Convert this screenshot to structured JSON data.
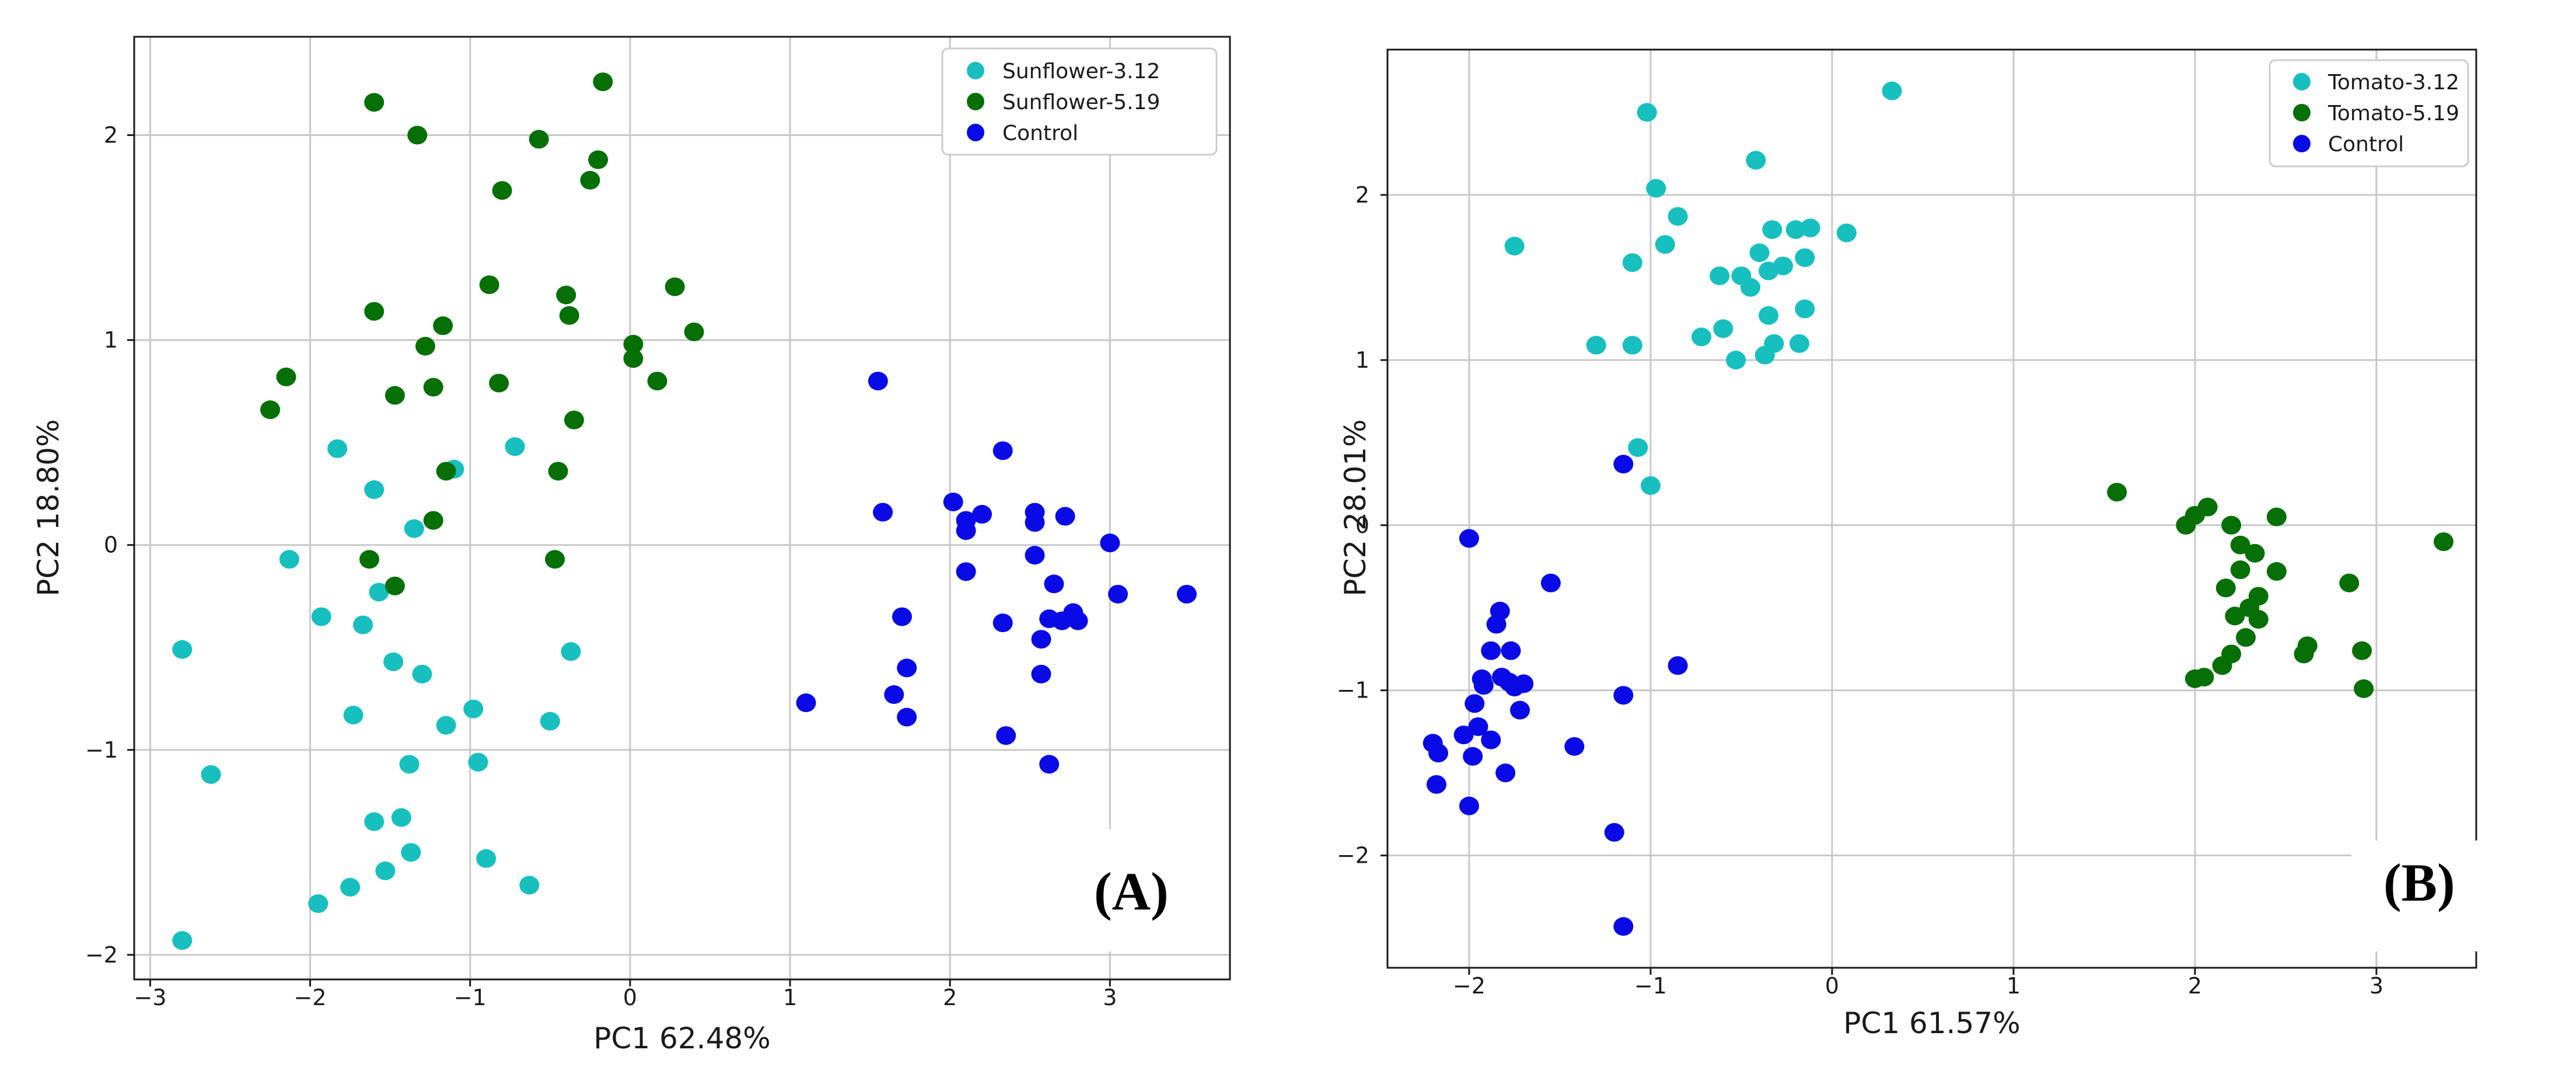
{
  "colors": {
    "cyan": "#17bfbf",
    "green": "#067006",
    "blue": "#0a0ae6"
  },
  "chart_data": [
    {
      "type": "scatter",
      "panel_label": "(A)",
      "xlabel": "PC1 62.48%",
      "ylabel": "PC2 18.80%",
      "xlim": [
        -3.1,
        3.75
      ],
      "ylim": [
        -2.12,
        2.48
      ],
      "xticks": [
        -3,
        -2,
        -1,
        0,
        1,
        2,
        3
      ],
      "yticks": [
        -2,
        -1,
        0,
        1,
        2
      ],
      "grid": true,
      "legend_position": "top-right",
      "series": [
        {
          "name": "Sunflower-3.12",
          "color": "#17bfbf",
          "points": [
            [
              -2.8,
              -0.51
            ],
            [
              -2.62,
              -1.12
            ],
            [
              -2.8,
              -1.93
            ],
            [
              -2.13,
              -0.07
            ],
            [
              -1.83,
              0.47
            ],
            [
              -1.93,
              -0.35
            ],
            [
              -1.95,
              -1.75
            ],
            [
              -1.73,
              -0.83
            ],
            [
              -1.75,
              -1.67
            ],
            [
              -1.67,
              -0.39
            ],
            [
              -1.6,
              0.27
            ],
            [
              -1.57,
              -0.23
            ],
            [
              -1.6,
              -1.35
            ],
            [
              -1.53,
              -1.59
            ],
            [
              -1.48,
              -0.57
            ],
            [
              -1.43,
              -1.33
            ],
            [
              -1.38,
              -1.07
            ],
            [
              -1.37,
              -1.5
            ],
            [
              -1.35,
              0.08
            ],
            [
              -1.3,
              -0.63
            ],
            [
              -1.15,
              -0.88
            ],
            [
              -1.1,
              0.37
            ],
            [
              -0.98,
              -0.8
            ],
            [
              -0.95,
              -1.06
            ],
            [
              -0.9,
              -1.53
            ],
            [
              -0.72,
              0.48
            ],
            [
              -0.63,
              -1.66
            ],
            [
              -0.5,
              -0.86
            ],
            [
              -0.37,
              -0.52
            ]
          ]
        },
        {
          "name": "Sunflower-5.19",
          "color": "#067006",
          "points": [
            [
              -2.25,
              0.66
            ],
            [
              -2.15,
              0.82
            ],
            [
              -1.63,
              -0.07
            ],
            [
              -1.6,
              2.16
            ],
            [
              -1.6,
              1.14
            ],
            [
              -1.47,
              0.73
            ],
            [
              -1.47,
              -0.2
            ],
            [
              -1.33,
              2.0
            ],
            [
              -1.28,
              0.97
            ],
            [
              -1.23,
              0.77
            ],
            [
              -1.23,
              0.12
            ],
            [
              -1.17,
              1.07
            ],
            [
              -1.15,
              0.36
            ],
            [
              -0.88,
              1.27
            ],
            [
              -0.82,
              0.79
            ],
            [
              -0.8,
              1.73
            ],
            [
              -0.57,
              1.98
            ],
            [
              -0.47,
              -0.07
            ],
            [
              -0.45,
              0.36
            ],
            [
              -0.4,
              1.22
            ],
            [
              -0.38,
              1.12
            ],
            [
              -0.35,
              0.61
            ],
            [
              -0.25,
              1.78
            ],
            [
              -0.2,
              1.88
            ],
            [
              -0.17,
              2.26
            ],
            [
              0.02,
              0.98
            ],
            [
              0.02,
              0.91
            ],
            [
              0.17,
              0.8
            ],
            [
              0.28,
              1.26
            ],
            [
              0.4,
              1.04
            ]
          ]
        },
        {
          "name": "Control",
          "color": "#0a0ae6",
          "points": [
            [
              1.1,
              -0.77
            ],
            [
              1.55,
              0.8
            ],
            [
              1.58,
              0.16
            ],
            [
              1.65,
              -0.73
            ],
            [
              1.7,
              -0.35
            ],
            [
              1.73,
              -0.6
            ],
            [
              1.73,
              -0.84
            ],
            [
              2.02,
              0.21
            ],
            [
              2.1,
              0.07
            ],
            [
              2.1,
              0.12
            ],
            [
              2.1,
              -0.13
            ],
            [
              2.2,
              0.15
            ],
            [
              2.33,
              0.46
            ],
            [
              2.33,
              -0.38
            ],
            [
              2.35,
              -0.93
            ],
            [
              2.53,
              0.16
            ],
            [
              2.53,
              0.11
            ],
            [
              2.53,
              -0.05
            ],
            [
              2.57,
              -0.46
            ],
            [
              2.57,
              -0.63
            ],
            [
              2.62,
              -1.07
            ],
            [
              2.62,
              -0.36
            ],
            [
              2.65,
              -0.19
            ],
            [
              2.7,
              -0.37
            ],
            [
              2.72,
              0.14
            ],
            [
              2.77,
              -0.33
            ],
            [
              2.8,
              -0.37
            ],
            [
              3.0,
              0.01
            ],
            [
              3.05,
              -0.24
            ],
            [
              3.48,
              -0.24
            ]
          ]
        }
      ]
    },
    {
      "type": "scatter",
      "panel_label": "(B)",
      "xlabel": "PC1 61.57%",
      "ylabel": "PC2 28.01%",
      "xlim": [
        -2.45,
        3.55
      ],
      "ylim": [
        -2.68,
        2.88
      ],
      "xticks": [
        -2,
        -1,
        0,
        1,
        2,
        3
      ],
      "yticks": [
        -2,
        -1,
        0,
        1,
        2
      ],
      "grid": true,
      "legend_position": "top-right",
      "series": [
        {
          "name": "Tomato-3.12",
          "color": "#17bfbf",
          "points": [
            [
              -1.75,
              1.69
            ],
            [
              -1.3,
              1.09
            ],
            [
              -1.1,
              1.59
            ],
            [
              -1.1,
              1.09
            ],
            [
              -1.07,
              0.47
            ],
            [
              -1.02,
              2.5
            ],
            [
              -1.0,
              0.24
            ],
            [
              -0.97,
              2.04
            ],
            [
              -0.92,
              1.7
            ],
            [
              -0.85,
              1.87
            ],
            [
              -0.72,
              1.14
            ],
            [
              -0.62,
              1.51
            ],
            [
              -0.6,
              1.19
            ],
            [
              -0.53,
              1.0
            ],
            [
              -0.5,
              1.51
            ],
            [
              -0.45,
              1.44
            ],
            [
              -0.42,
              2.21
            ],
            [
              -0.4,
              1.65
            ],
            [
              -0.37,
              1.03
            ],
            [
              -0.35,
              1.54
            ],
            [
              -0.35,
              1.27
            ],
            [
              -0.33,
              1.79
            ],
            [
              -0.32,
              1.1
            ],
            [
              -0.27,
              1.57
            ],
            [
              -0.2,
              1.79
            ],
            [
              -0.18,
              1.1
            ],
            [
              -0.15,
              1.62
            ],
            [
              -0.15,
              1.31
            ],
            [
              -0.12,
              1.8
            ],
            [
              0.08,
              1.77
            ],
            [
              0.33,
              2.63
            ]
          ]
        },
        {
          "name": "Tomato-5.19",
          "color": "#067006",
          "points": [
            [
              1.57,
              0.2
            ],
            [
              1.95,
              0.0
            ],
            [
              2.0,
              0.06
            ],
            [
              2.0,
              -0.93
            ],
            [
              2.05,
              -0.92
            ],
            [
              2.07,
              0.11
            ],
            [
              2.15,
              -0.85
            ],
            [
              2.17,
              -0.38
            ],
            [
              2.2,
              -0.78
            ],
            [
              2.2,
              0.0
            ],
            [
              2.22,
              -0.55
            ],
            [
              2.25,
              -0.27
            ],
            [
              2.25,
              -0.12
            ],
            [
              2.28,
              -0.68
            ],
            [
              2.3,
              -0.5
            ],
            [
              2.33,
              -0.17
            ],
            [
              2.35,
              -0.43
            ],
            [
              2.35,
              -0.57
            ],
            [
              2.45,
              0.05
            ],
            [
              2.45,
              -0.28
            ],
            [
              2.6,
              -0.78
            ],
            [
              2.62,
              -0.73
            ],
            [
              2.85,
              -0.35
            ],
            [
              2.92,
              -0.76
            ],
            [
              2.93,
              -0.99
            ],
            [
              3.37,
              -0.1
            ]
          ]
        },
        {
          "name": "Control",
          "color": "#0a0ae6",
          "points": [
            [
              -2.2,
              -1.32
            ],
            [
              -2.18,
              -1.57
            ],
            [
              -2.17,
              -1.38
            ],
            [
              -2.03,
              -1.27
            ],
            [
              -2.0,
              -0.08
            ],
            [
              -2.0,
              -1.7
            ],
            [
              -1.98,
              -1.4
            ],
            [
              -1.97,
              -1.08
            ],
            [
              -1.95,
              -1.22
            ],
            [
              -1.93,
              -0.93
            ],
            [
              -1.92,
              -0.97
            ],
            [
              -1.88,
              -0.76
            ],
            [
              -1.88,
              -1.3
            ],
            [
              -1.85,
              -0.6
            ],
            [
              -1.83,
              -0.52
            ],
            [
              -1.82,
              -0.92
            ],
            [
              -1.8,
              -1.5
            ],
            [
              -1.78,
              -0.95
            ],
            [
              -1.77,
              -0.76
            ],
            [
              -1.75,
              -0.98
            ],
            [
              -1.72,
              -1.12
            ],
            [
              -1.7,
              -0.96
            ],
            [
              -1.55,
              -0.35
            ],
            [
              -1.42,
              -1.34
            ],
            [
              -1.2,
              -1.86
            ],
            [
              -1.15,
              0.37
            ],
            [
              -1.15,
              -1.03
            ],
            [
              -1.15,
              -2.43
            ],
            [
              -0.85,
              -0.85
            ]
          ]
        }
      ]
    }
  ]
}
